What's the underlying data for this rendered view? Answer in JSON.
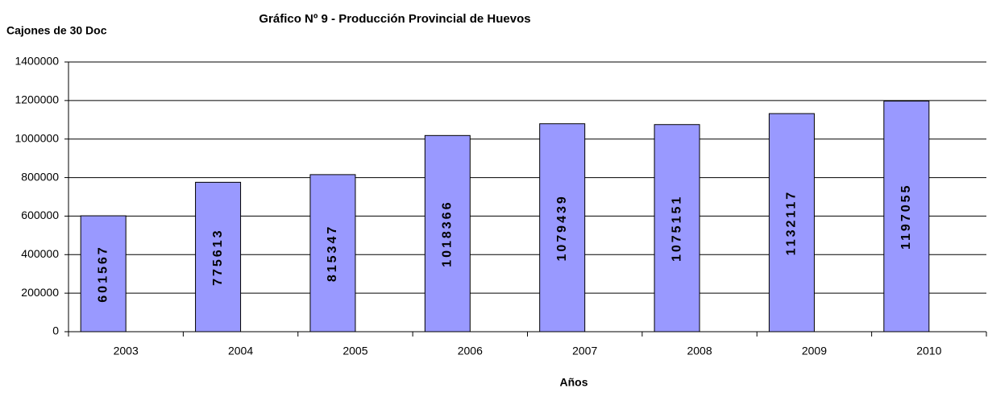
{
  "chart_data": {
    "type": "bar",
    "title": "Gráfico Nº 9 - Producción Provincial de Huevos",
    "y_label": "Cajones de 30 Doc",
    "x_label": "Años",
    "categories": [
      "2003",
      "2004",
      "2005",
      "2006",
      "2007",
      "2008",
      "2009",
      "2010"
    ],
    "values": [
      601567,
      775613,
      815347,
      1018366,
      1079439,
      1075151,
      1132117,
      1197055
    ],
    "color": "#9999ff",
    "ylim": [
      0,
      1400000
    ],
    "yticks": [
      0,
      200000,
      400000,
      600000,
      800000,
      1000000,
      1200000,
      1400000
    ],
    "grid": true
  }
}
